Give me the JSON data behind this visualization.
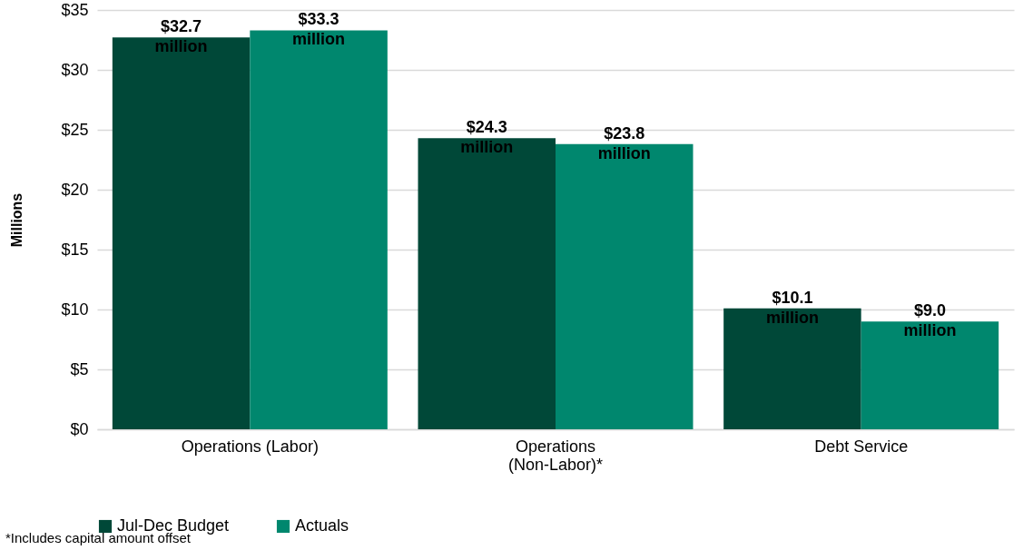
{
  "chart_data": {
    "type": "bar",
    "ylabel": "Millions",
    "categories": [
      "Operations (Labor)",
      "Operations (Non-Labor)*",
      "Debt Service"
    ],
    "series": [
      {
        "name": "Jul-Dec Budget",
        "color": "#004838",
        "values": [
          32.7,
          24.3,
          10.1
        ],
        "value_labels": [
          "$32.7 million",
          "$24.3 million",
          "$10.1 million"
        ]
      },
      {
        "name": "Actuals",
        "color": "#00876e",
        "values": [
          33.3,
          23.8,
          9.0
        ],
        "value_labels": [
          "$33.3 million",
          "$23.8 million",
          "$9.0 million"
        ]
      }
    ],
    "ylim": [
      0,
      35
    ],
    "yticks": [
      {
        "value": 0,
        "label": "$0"
      },
      {
        "value": 5,
        "label": "$5"
      },
      {
        "value": 10,
        "label": "$10"
      },
      {
        "value": 15,
        "label": "$15"
      },
      {
        "value": 20,
        "label": "$20"
      },
      {
        "value": 25,
        "label": "$25"
      },
      {
        "value": 30,
        "label": "$30"
      },
      {
        "value": 35,
        "label": "$35"
      }
    ],
    "grid": "y",
    "legend": "bottom",
    "annotations": [
      "*Includes capital amount offset"
    ]
  }
}
